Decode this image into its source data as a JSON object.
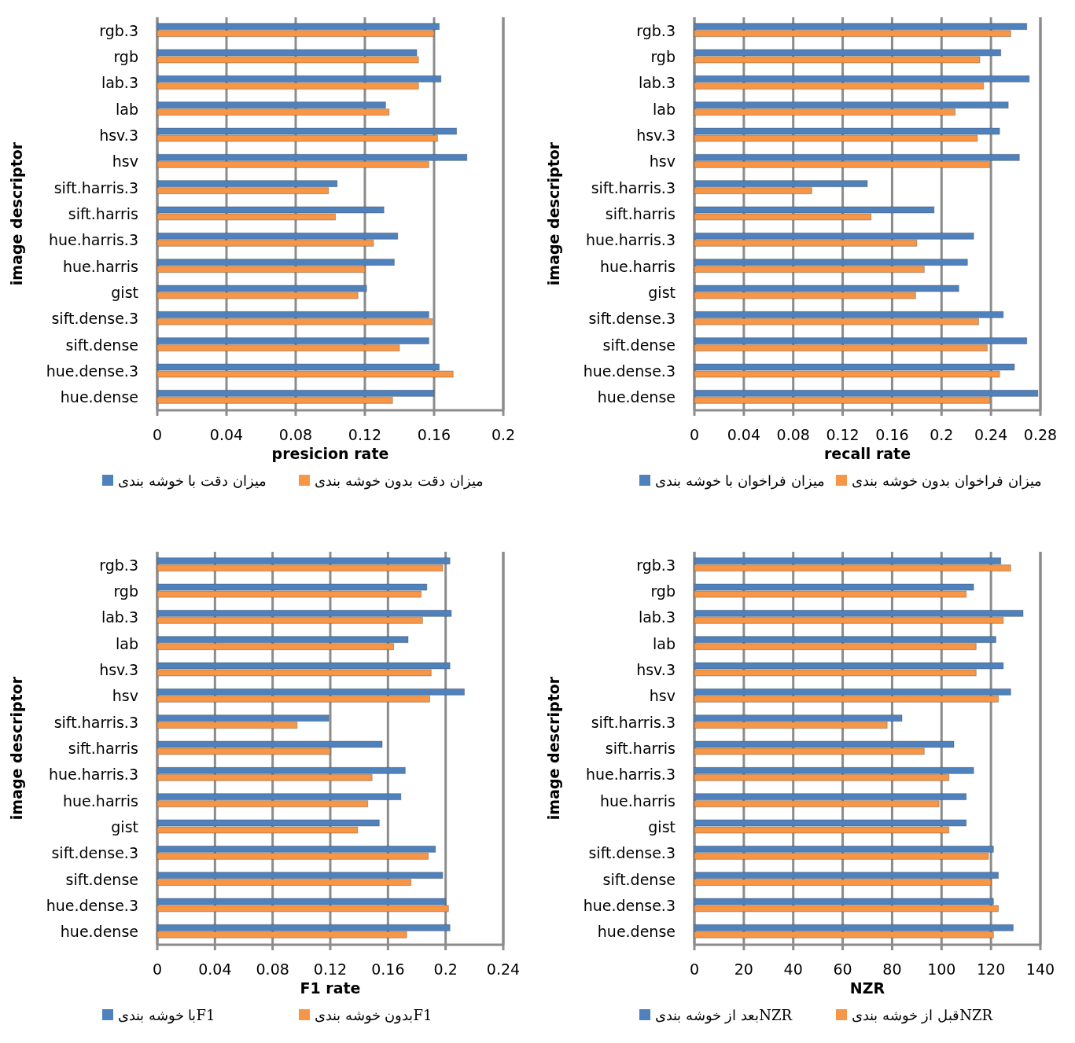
{
  "chart_data": [
    {
      "type": "bar",
      "orientation": "horizontal",
      "xlabel": "presicion rate",
      "ylabel": "image descriptor",
      "categories": [
        "rgb.3",
        "rgb",
        "lab.3",
        "lab",
        "hsv.3",
        "hsv",
        "sift.harris.3",
        "sift.harris",
        "hue.harris.3",
        "hue.harris",
        "gist",
        "sift.dense.3",
        "sift.dense",
        "hue.dense.3",
        "hue.dense"
      ],
      "series": [
        {
          "name": "میزان دقت با خوشه بندی",
          "color": "#4f81bd",
          "values": [
            0.163,
            0.15,
            0.164,
            0.132,
            0.173,
            0.179,
            0.104,
            0.131,
            0.139,
            0.137,
            0.121,
            0.157,
            0.157,
            0.163,
            0.16
          ]
        },
        {
          "name": "میزان دقت بدون خوشه بندی",
          "color": "#f79646",
          "values": [
            0.16,
            0.151,
            0.151,
            0.134,
            0.162,
            0.157,
            0.099,
            0.103,
            0.125,
            0.12,
            0.116,
            0.159,
            0.14,
            0.171,
            0.136
          ]
        }
      ],
      "xlim": [
        0,
        0.2
      ],
      "xticks": [
        0,
        0.04,
        0.08,
        0.12,
        0.16,
        0.2
      ],
      "grid": "x",
      "legend": "bottom"
    },
    {
      "type": "bar",
      "orientation": "horizontal",
      "xlabel": "recall rate",
      "ylabel": "image descriptor",
      "categories": [
        "rgb.3",
        "rgb",
        "lab.3",
        "lab",
        "hsv.3",
        "hsv",
        "sift.harris.3",
        "sift.harris",
        "hue.harris.3",
        "hue.harris",
        "gist",
        "sift.dense.3",
        "sift.dense",
        "hue.dense.3",
        "hue.dense"
      ],
      "series": [
        {
          "name": "میزان فراخوان با خوشه بندی",
          "color": "#4f81bd",
          "values": [
            0.269,
            0.248,
            0.271,
            0.254,
            0.247,
            0.263,
            0.14,
            0.194,
            0.226,
            0.221,
            0.214,
            0.25,
            0.269,
            0.259,
            0.278
          ]
        },
        {
          "name": "میزان فراخوان بدون خوشه بندی",
          "color": "#f79646",
          "values": [
            0.256,
            0.231,
            0.234,
            0.211,
            0.229,
            0.239,
            0.095,
            0.143,
            0.18,
            0.186,
            0.179,
            0.23,
            0.237,
            0.247,
            0.239
          ]
        }
      ],
      "xlim": [
        0,
        0.28
      ],
      "xticks": [
        0,
        0.04,
        0.08,
        0.12,
        0.16,
        0.2,
        0.24,
        0.28
      ],
      "grid": "x",
      "legend": "bottom"
    },
    {
      "type": "bar",
      "orientation": "horizontal",
      "xlabel": "F1 rate",
      "ylabel": "image descriptor",
      "categories": [
        "rgb.3",
        "rgb",
        "lab.3",
        "lab",
        "hsv.3",
        "hsv",
        "sift.harris.3",
        "sift.harris",
        "hue.harris.3",
        "hue.harris",
        "gist",
        "sift.dense.3",
        "sift.dense",
        "hue.dense.3",
        "hue.dense"
      ],
      "series": [
        {
          "name": "F1با خوشه بندی",
          "color": "#4f81bd",
          "values": [
            0.203,
            0.187,
            0.204,
            0.174,
            0.203,
            0.213,
            0.119,
            0.156,
            0.172,
            0.169,
            0.154,
            0.193,
            0.198,
            0.2,
            0.203
          ]
        },
        {
          "name": "F1بدون خوشه بندی",
          "color": "#f79646",
          "values": [
            0.198,
            0.183,
            0.184,
            0.164,
            0.19,
            0.189,
            0.097,
            0.12,
            0.149,
            0.146,
            0.139,
            0.188,
            0.176,
            0.202,
            0.173
          ]
        }
      ],
      "xlim": [
        0,
        0.24
      ],
      "xticks": [
        0,
        0.04,
        0.08,
        0.12,
        0.16,
        0.2,
        0.24
      ],
      "grid": "x",
      "legend": "bottom"
    },
    {
      "type": "bar",
      "orientation": "horizontal",
      "xlabel": "NZR",
      "ylabel": "image descriptor",
      "categories": [
        "rgb.3",
        "rgb",
        "lab.3",
        "lab",
        "hsv.3",
        "hsv",
        "sift.harris.3",
        "sift.harris",
        "hue.harris.3",
        "hue.harris",
        "gist",
        "sift.dense.3",
        "sift.dense",
        "hue.dense.3",
        "hue.dense"
      ],
      "series": [
        {
          "name": "NZRبعد از خوشه بندی",
          "color": "#4f81bd",
          "values": [
            124,
            113,
            133,
            122,
            125,
            128,
            84,
            105,
            113,
            110,
            110,
            121,
            123,
            121,
            129
          ]
        },
        {
          "name": "NZRقبل از خوشه بندی",
          "color": "#f79646",
          "values": [
            128,
            110,
            125,
            114,
            114,
            123,
            78,
            93,
            103,
            99,
            103,
            119,
            120,
            123,
            121
          ]
        }
      ],
      "xlim": [
        0,
        140
      ],
      "xticks": [
        0,
        20,
        40,
        60,
        80,
        100,
        120,
        140
      ],
      "grid": "x",
      "legend": "bottom"
    }
  ]
}
